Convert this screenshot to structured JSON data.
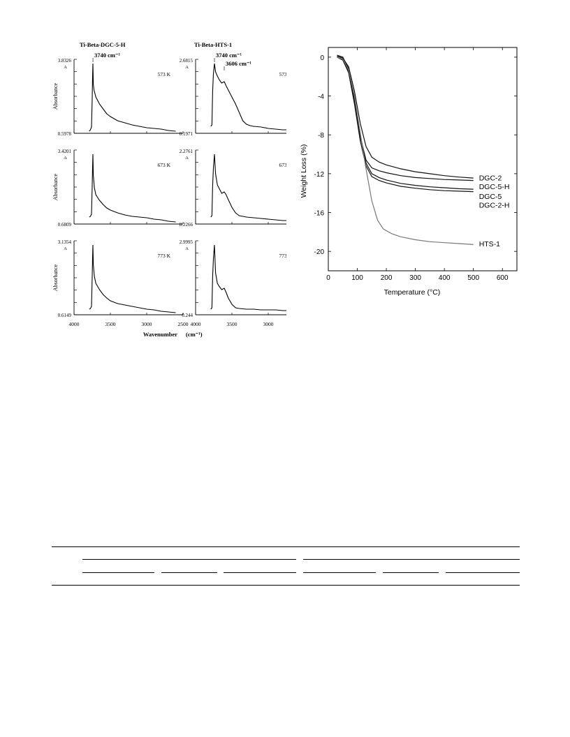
{
  "ir_figure": {
    "column_titles": [
      "Ti-Beta-DGC-5-H",
      "Ti-Beta-HTS-1"
    ],
    "ylabel": "Absorbance",
    "xlabel": "Wavenumber",
    "xlabel_unit": "(cm⁻¹)",
    "x_ticks": [
      "4000",
      "3500",
      "3000",
      "2500"
    ],
    "absorbance_unit": "A",
    "peak_labels": {
      "p3740": "3740 cm⁻¹",
      "p3606": "3606 cm⁻¹"
    },
    "panels": [
      {
        "sample": "Ti-Beta-DGC-5-H",
        "temperature": "573 K",
        "y_max": "3.8326",
        "y_min": "0.5978",
        "peaks": [
          "3740 cm⁻¹"
        ],
        "spectrum": [
          [
            3790,
            0.03
          ],
          [
            3775,
            0.05
          ],
          [
            3760,
            0.09
          ],
          [
            3750,
            0.5
          ],
          [
            3745,
            0.8
          ],
          [
            3740,
            1.0
          ],
          [
            3735,
            0.7
          ],
          [
            3725,
            0.62
          ],
          [
            3700,
            0.52
          ],
          [
            3650,
            0.42
          ],
          [
            3600,
            0.35
          ],
          [
            3550,
            0.28
          ],
          [
            3500,
            0.24
          ],
          [
            3400,
            0.18
          ],
          [
            3300,
            0.15
          ],
          [
            3200,
            0.12
          ],
          [
            3100,
            0.1
          ],
          [
            3000,
            0.08
          ],
          [
            2900,
            0.07
          ],
          [
            2800,
            0.06
          ],
          [
            2700,
            0.04
          ],
          [
            2600,
            0.03
          ]
        ]
      },
      {
        "sample": "Ti-Beta-HTS-1",
        "temperature": "573 K",
        "y_max": "2.6815",
        "y_min": "0.1971",
        "peaks": [
          "3740 cm⁻¹",
          "3606 cm⁻¹"
        ],
        "spectrum": [
          [
            3790,
            0.1
          ],
          [
            3775,
            0.12
          ],
          [
            3765,
            0.6
          ],
          [
            3755,
            0.85
          ],
          [
            3740,
            1.0
          ],
          [
            3725,
            0.88
          ],
          [
            3700,
            0.82
          ],
          [
            3670,
            0.76
          ],
          [
            3640,
            0.72
          ],
          [
            3606,
            0.74
          ],
          [
            3580,
            0.68
          ],
          [
            3550,
            0.62
          ],
          [
            3500,
            0.52
          ],
          [
            3450,
            0.42
          ],
          [
            3400,
            0.3
          ],
          [
            3350,
            0.18
          ],
          [
            3300,
            0.13
          ],
          [
            3250,
            0.11
          ],
          [
            3200,
            0.1
          ],
          [
            3100,
            0.09
          ],
          [
            3000,
            0.07
          ],
          [
            2900,
            0.06
          ],
          [
            2800,
            0.05
          ],
          [
            2700,
            0.05
          ],
          [
            2600,
            0.04
          ]
        ]
      },
      {
        "sample": "Ti-Beta-DGC-5-H",
        "temperature": "673 K",
        "y_max": "3.4201",
        "y_min": "0.6809",
        "peaks": [],
        "spectrum": [
          [
            3790,
            0.1
          ],
          [
            3775,
            0.11
          ],
          [
            3760,
            0.14
          ],
          [
            3750,
            0.55
          ],
          [
            3745,
            0.8
          ],
          [
            3740,
            1.0
          ],
          [
            3735,
            0.7
          ],
          [
            3720,
            0.52
          ],
          [
            3700,
            0.42
          ],
          [
            3650,
            0.34
          ],
          [
            3600,
            0.28
          ],
          [
            3550,
            0.23
          ],
          [
            3500,
            0.2
          ],
          [
            3400,
            0.16
          ],
          [
            3300,
            0.13
          ],
          [
            3200,
            0.11
          ],
          [
            3100,
            0.1
          ],
          [
            3000,
            0.09
          ],
          [
            2900,
            0.07
          ],
          [
            2800,
            0.06
          ],
          [
            2700,
            0.04
          ],
          [
            2600,
            0.03
          ]
        ]
      },
      {
        "sample": "Ti-Beta-HTS-1",
        "temperature": "673 K",
        "y_max": "2.2761",
        "y_min": "0.2266",
        "peaks": [],
        "spectrum": [
          [
            3790,
            0.1
          ],
          [
            3775,
            0.12
          ],
          [
            3765,
            0.55
          ],
          [
            3755,
            0.8
          ],
          [
            3740,
            1.0
          ],
          [
            3725,
            0.72
          ],
          [
            3700,
            0.56
          ],
          [
            3670,
            0.5
          ],
          [
            3640,
            0.44
          ],
          [
            3606,
            0.46
          ],
          [
            3580,
            0.42
          ],
          [
            3550,
            0.35
          ],
          [
            3500,
            0.24
          ],
          [
            3450,
            0.16
          ],
          [
            3400,
            0.12
          ],
          [
            3300,
            0.1
          ],
          [
            3200,
            0.09
          ],
          [
            3100,
            0.08
          ],
          [
            3000,
            0.07
          ],
          [
            2900,
            0.06
          ],
          [
            2800,
            0.05
          ],
          [
            2700,
            0.05
          ],
          [
            2600,
            0.04
          ]
        ]
      },
      {
        "sample": "Ti-Beta-DGC-5-H",
        "temperature": "773 K",
        "y_max": "3.1354",
        "y_min": "0.6149",
        "peaks": [],
        "spectrum": [
          [
            3790,
            0.08
          ],
          [
            3775,
            0.09
          ],
          [
            3760,
            0.12
          ],
          [
            3750,
            0.55
          ],
          [
            3745,
            0.8
          ],
          [
            3740,
            1.0
          ],
          [
            3735,
            0.72
          ],
          [
            3720,
            0.55
          ],
          [
            3700,
            0.45
          ],
          [
            3650,
            0.36
          ],
          [
            3600,
            0.29
          ],
          [
            3550,
            0.24
          ],
          [
            3500,
            0.2
          ],
          [
            3400,
            0.16
          ],
          [
            3300,
            0.14
          ],
          [
            3200,
            0.12
          ],
          [
            3100,
            0.1
          ],
          [
            3000,
            0.08
          ],
          [
            2900,
            0.07
          ],
          [
            2800,
            0.05
          ],
          [
            2700,
            0.04
          ],
          [
            2600,
            0.03
          ]
        ]
      },
      {
        "sample": "Ti-Beta-HTS-1",
        "temperature": "773 K",
        "y_max": "2.9995",
        "y_min": "0.244",
        "peaks": [],
        "spectrum": [
          [
            3790,
            0.08
          ],
          [
            3775,
            0.1
          ],
          [
            3765,
            0.55
          ],
          [
            3755,
            0.8
          ],
          [
            3740,
            1.0
          ],
          [
            3725,
            0.6
          ],
          [
            3700,
            0.45
          ],
          [
            3670,
            0.4
          ],
          [
            3640,
            0.36
          ],
          [
            3606,
            0.38
          ],
          [
            3580,
            0.32
          ],
          [
            3550,
            0.24
          ],
          [
            3500,
            0.15
          ],
          [
            3450,
            0.1
          ],
          [
            3400,
            0.09
          ],
          [
            3300,
            0.08
          ],
          [
            3200,
            0.08
          ],
          [
            3100,
            0.07
          ],
          [
            3000,
            0.07
          ],
          [
            2900,
            0.07
          ],
          [
            2800,
            0.06
          ],
          [
            2700,
            0.06
          ],
          [
            2600,
            0.06
          ]
        ]
      }
    ]
  },
  "chart_data": {
    "type": "line",
    "title": "",
    "xlabel": "Temperature (°C)",
    "ylabel": "Weight Loss (%)",
    "xlim": [
      0,
      650
    ],
    "ylim": [
      -22,
      1
    ],
    "x_ticks": [
      0,
      100,
      200,
      300,
      400,
      500,
      600
    ],
    "y_ticks": [
      0,
      -4,
      -8,
      -12,
      -16,
      -20
    ],
    "series": [
      {
        "name": "DGC-2",
        "label_y": -12.4,
        "color": "#111111",
        "points": [
          [
            30,
            0.1
          ],
          [
            50,
            -0.1
          ],
          [
            70,
            -1.0
          ],
          [
            90,
            -3.5
          ],
          [
            110,
            -6.8
          ],
          [
            130,
            -9.2
          ],
          [
            150,
            -10.3
          ],
          [
            175,
            -10.8
          ],
          [
            200,
            -11.1
          ],
          [
            250,
            -11.5
          ],
          [
            300,
            -11.8
          ],
          [
            350,
            -12.0
          ],
          [
            400,
            -12.2
          ],
          [
            450,
            -12.35
          ],
          [
            500,
            -12.45
          ]
        ]
      },
      {
        "name": "DGC-5-H",
        "label_y": -13.3,
        "color": "#111111",
        "points": [
          [
            30,
            0.0
          ],
          [
            50,
            -0.3
          ],
          [
            70,
            -1.5
          ],
          [
            90,
            -4.5
          ],
          [
            110,
            -8.2
          ],
          [
            130,
            -10.6
          ],
          [
            150,
            -11.4
          ],
          [
            175,
            -11.7
          ],
          [
            200,
            -11.9
          ],
          [
            250,
            -12.2
          ],
          [
            300,
            -12.4
          ],
          [
            350,
            -12.5
          ],
          [
            400,
            -12.6
          ],
          [
            450,
            -12.65
          ],
          [
            500,
            -12.7
          ]
        ]
      },
      {
        "name": "DGC-5",
        "label_y": -14.3,
        "color": "#111111",
        "points": [
          [
            30,
            0.2
          ],
          [
            50,
            0.0
          ],
          [
            70,
            -1.2
          ],
          [
            90,
            -4.2
          ],
          [
            110,
            -8.0
          ],
          [
            130,
            -10.9
          ],
          [
            150,
            -12.0
          ],
          [
            175,
            -12.4
          ],
          [
            200,
            -12.65
          ],
          [
            250,
            -13.0
          ],
          [
            300,
            -13.2
          ],
          [
            350,
            -13.35
          ],
          [
            400,
            -13.45
          ],
          [
            450,
            -13.55
          ],
          [
            500,
            -13.6
          ]
        ]
      },
      {
        "name": "DGC-2-H",
        "label_y": -15.2,
        "color": "#111111",
        "points": [
          [
            30,
            0.0
          ],
          [
            50,
            -0.3
          ],
          [
            70,
            -1.6
          ],
          [
            90,
            -4.8
          ],
          [
            110,
            -8.6
          ],
          [
            130,
            -11.2
          ],
          [
            150,
            -12.3
          ],
          [
            175,
            -12.7
          ],
          [
            200,
            -12.95
          ],
          [
            250,
            -13.3
          ],
          [
            300,
            -13.5
          ],
          [
            350,
            -13.65
          ],
          [
            400,
            -13.75
          ],
          [
            450,
            -13.8
          ],
          [
            500,
            -13.85
          ]
        ]
      },
      {
        "name": "HTS-1",
        "label_y": -19.2,
        "color": "#777777",
        "points": [
          [
            30,
            0.0
          ],
          [
            50,
            -0.2
          ],
          [
            70,
            -1.3
          ],
          [
            90,
            -4.0
          ],
          [
            110,
            -7.8
          ],
          [
            130,
            -11.5
          ],
          [
            150,
            -14.8
          ],
          [
            170,
            -16.8
          ],
          [
            190,
            -17.7
          ],
          [
            220,
            -18.2
          ],
          [
            250,
            -18.5
          ],
          [
            300,
            -18.8
          ],
          [
            350,
            -19.0
          ],
          [
            400,
            -19.1
          ],
          [
            450,
            -19.2
          ],
          [
            500,
            -19.3
          ]
        ]
      }
    ]
  }
}
